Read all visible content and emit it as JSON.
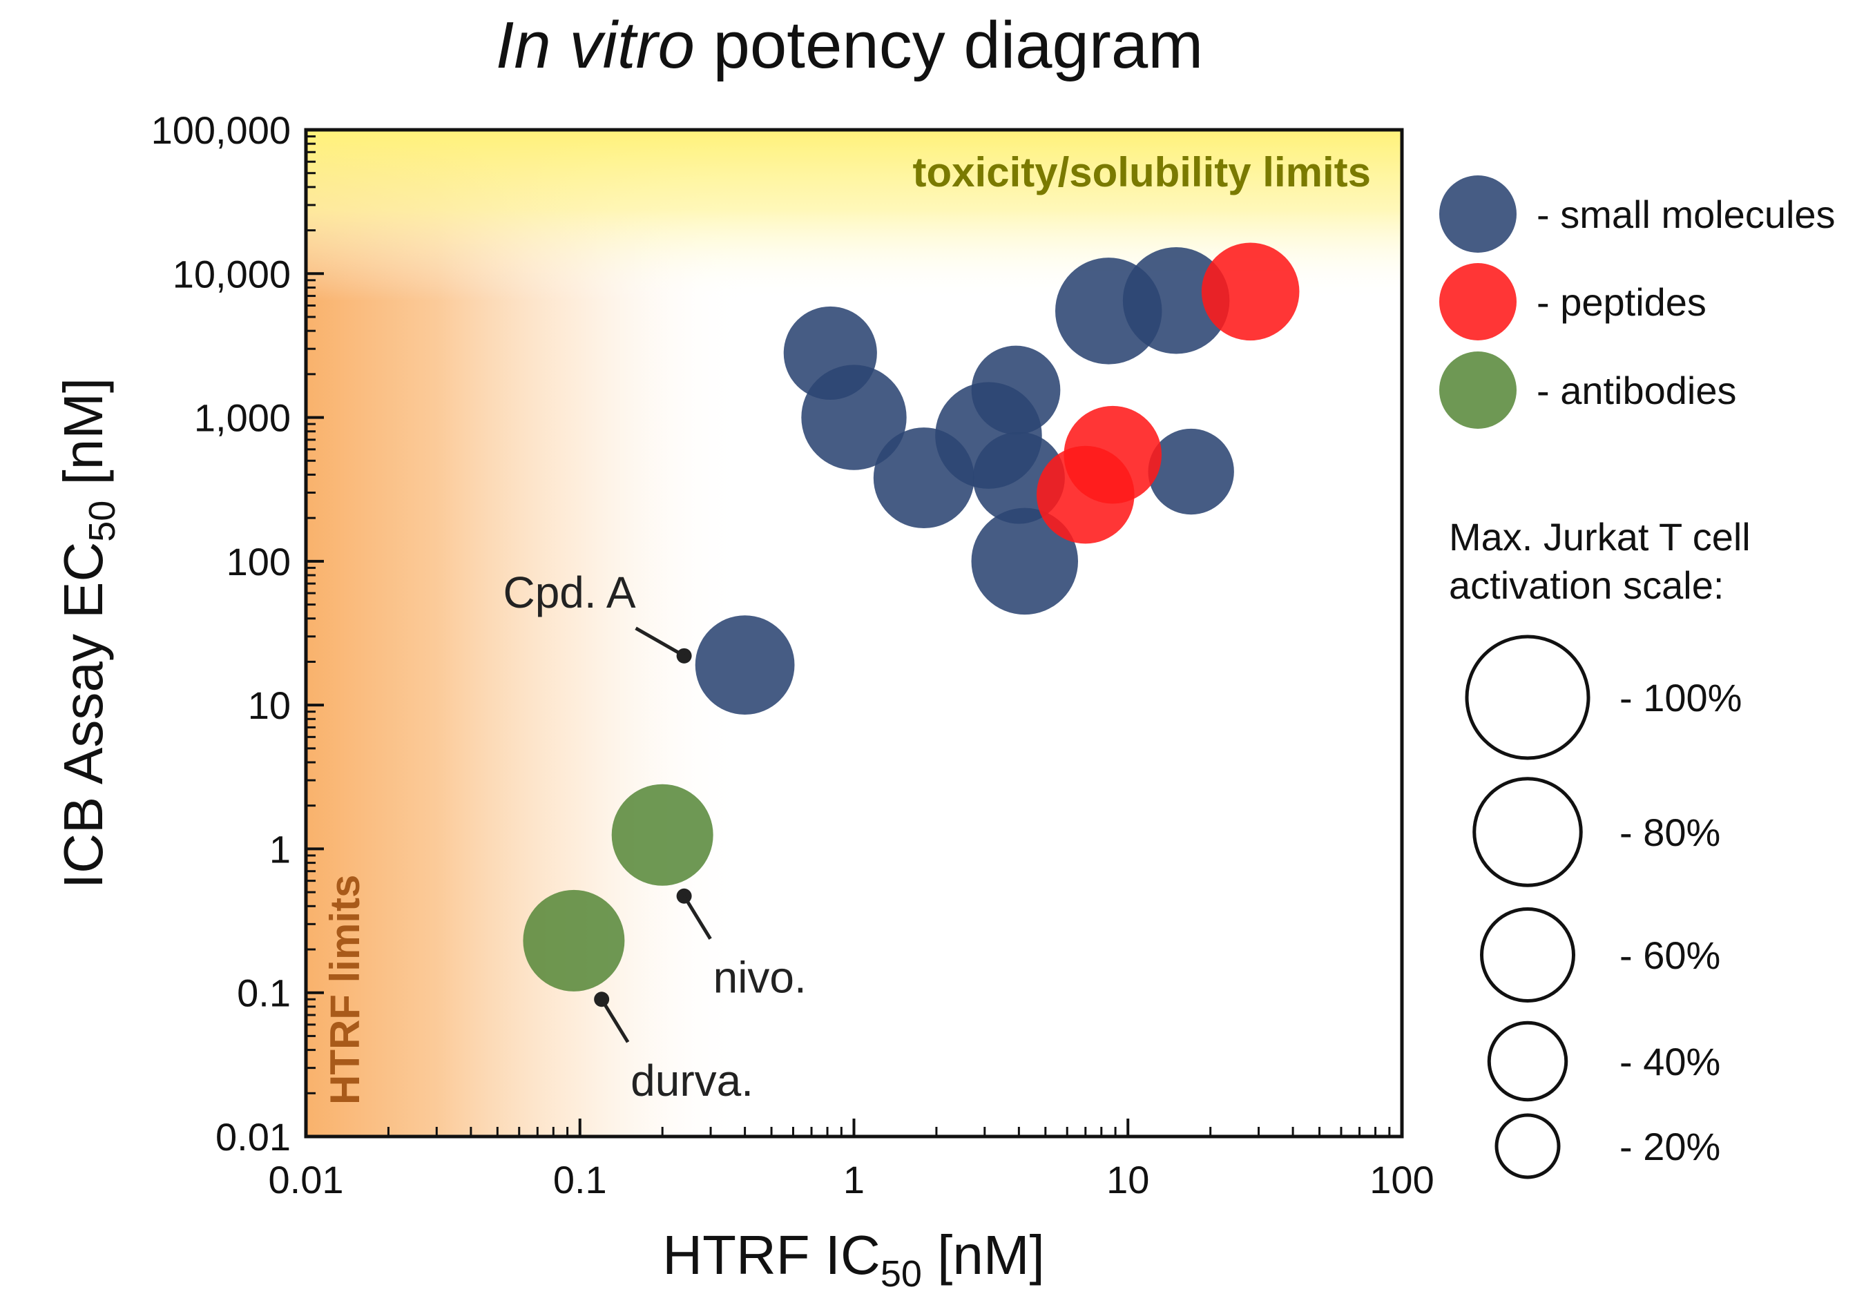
{
  "chart_data": {
    "type": "scatter",
    "title_italic": "In vitro",
    "title_rest": " potency diagram",
    "xlabel": "HTRF IC",
    "xlabel_sub": "50",
    "xlabel_unit": " [nM]",
    "ylabel": "ICB Assay EC",
    "ylabel_sub": "50",
    "ylabel_unit": " [nM]",
    "xscale": "log",
    "yscale": "log",
    "xlim": [
      0.01,
      100
    ],
    "ylim": [
      0.01,
      100000
    ],
    "x_ticks": [
      {
        "value": 0.01,
        "label": "0.01"
      },
      {
        "value": 0.1,
        "label": "0.1"
      },
      {
        "value": 1,
        "label": "1"
      },
      {
        "value": 10,
        "label": "10"
      },
      {
        "value": 100,
        "label": "100"
      }
    ],
    "y_ticks": [
      {
        "value": 0.01,
        "label": "0.01"
      },
      {
        "value": 0.1,
        "label": "0.1"
      },
      {
        "value": 1,
        "label": "1"
      },
      {
        "value": 10,
        "label": "10"
      },
      {
        "value": 100,
        "label": "100"
      },
      {
        "value": 1000,
        "label": "1,000"
      },
      {
        "value": 10000,
        "label": "10,000"
      },
      {
        "value": 100000,
        "label": "100,000"
      }
    ],
    "regions": {
      "top_label": "toxicity/solubility limits",
      "left_label": "HTRF limits"
    },
    "series": [
      {
        "name": "small molecules",
        "color": "#2c4573",
        "points": [
          {
            "x": 0.4,
            "y": 19,
            "size": 70
          },
          {
            "x": 0.82,
            "y": 2800,
            "size": 62
          },
          {
            "x": 1.0,
            "y": 1000,
            "size": 78
          },
          {
            "x": 1.8,
            "y": 380,
            "size": 72
          },
          {
            "x": 3.1,
            "y": 750,
            "size": 80
          },
          {
            "x": 3.9,
            "y": 1550,
            "size": 56
          },
          {
            "x": 4.0,
            "y": 380,
            "size": 60
          },
          {
            "x": 4.2,
            "y": 100,
            "size": 80
          },
          {
            "x": 8.5,
            "y": 5500,
            "size": 80
          },
          {
            "x": 15,
            "y": 6500,
            "size": 80
          },
          {
            "x": 17,
            "y": 420,
            "size": 52
          }
        ]
      },
      {
        "name": "peptides",
        "color": "#ff1a1a",
        "points": [
          {
            "x": 28,
            "y": 7500,
            "size": 68
          },
          {
            "x": 8.8,
            "y": 550,
            "size": 68
          },
          {
            "x": 7.0,
            "y": 290,
            "size": 68
          }
        ]
      },
      {
        "name": "antibodies",
        "color": "#5a8a3c",
        "points": [
          {
            "x": 0.2,
            "y": 1.25,
            "size": 73
          },
          {
            "x": 0.095,
            "y": 0.23,
            "size": 73
          }
        ]
      }
    ],
    "annotations": [
      {
        "text": "Cpd. A",
        "x": 0.24,
        "y": 22,
        "anchor": "left"
      },
      {
        "text": "nivo.",
        "x": 0.24,
        "y": 0.47,
        "anchor": "right"
      },
      {
        "text": "durva.",
        "x": 0.12,
        "y": 0.09,
        "anchor": "right"
      }
    ],
    "legend": {
      "series_labels": [
        "- small molecules",
        "- peptides",
        "- antibodies"
      ],
      "size_title_line1": "Max. Jurkat T cell",
      "size_title_line2": "activation scale:",
      "size_scale": [
        {
          "value": 100,
          "label": "- 100%"
        },
        {
          "value": 80,
          "label": "- 80%"
        },
        {
          "value": 60,
          "label": "- 60%"
        },
        {
          "value": 40,
          "label": "- 40%"
        },
        {
          "value": 20,
          "label": "- 20%"
        }
      ]
    }
  }
}
